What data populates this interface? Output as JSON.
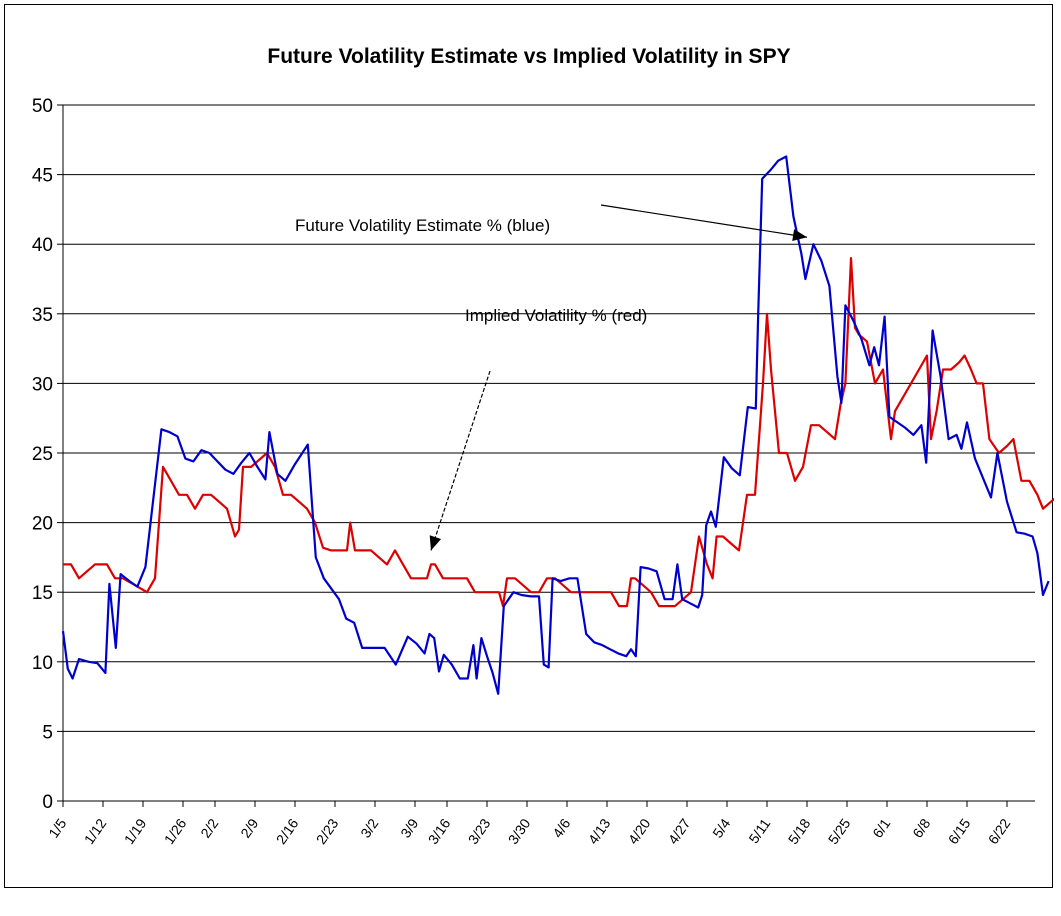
{
  "chart_data": {
    "type": "line",
    "title": "Future Volatility Estimate vs Implied Volatility in SPY",
    "xlabel": "",
    "ylabel": "",
    "ylim": [
      0,
      50
    ],
    "yticks": [
      0,
      5,
      10,
      15,
      20,
      25,
      30,
      35,
      40,
      45,
      50
    ],
    "grid": true,
    "x_index_range": [
      0,
      120
    ],
    "categories": [
      "1/5",
      "1/12",
      "1/19",
      "1/26",
      "2/2",
      "2/9",
      "2/16",
      "2/23",
      "3/2",
      "3/9",
      "3/16",
      "3/23",
      "3/30",
      "4/6",
      "4/13",
      "4/20",
      "4/27",
      "5/4",
      "5/11",
      "5/18",
      "5/25",
      "6/1",
      "6/8",
      "6/15",
      "6/22"
    ],
    "category_index": [
      0,
      5,
      10,
      15,
      19,
      24,
      29,
      34,
      39,
      44,
      48,
      53,
      58,
      63,
      68,
      73,
      78,
      83,
      88,
      93,
      98,
      103,
      108,
      113,
      118
    ],
    "annotations": [
      {
        "text": "Future Volatility Estimate % (blue)",
        "series": "Future Volatility Estimate %",
        "points_to": [
          93,
          40.5
        ]
      },
      {
        "text": "Implied Volatility % (red)",
        "series": "Implied Volatility %",
        "points_to": [
          46,
          18
        ]
      }
    ],
    "series": [
      {
        "name": "Future Volatility Estimate %",
        "color": "#0000cc",
        "points": [
          [
            0,
            12.2
          ],
          [
            0.6,
            9.5
          ],
          [
            1.2,
            8.8
          ],
          [
            2,
            10.2
          ],
          [
            3.2,
            10
          ],
          [
            4.3,
            9.9
          ],
          [
            5.3,
            9.2
          ],
          [
            5.8,
            15.6
          ],
          [
            6.6,
            11
          ],
          [
            7.2,
            16.3
          ],
          [
            8.3,
            15.8
          ],
          [
            9.3,
            15.4
          ],
          [
            10.3,
            16.8
          ],
          [
            12.3,
            26.7
          ],
          [
            13.3,
            26.5
          ],
          [
            14.3,
            26.2
          ],
          [
            15.3,
            24.6
          ],
          [
            16.3,
            24.4
          ],
          [
            17.3,
            25.2
          ],
          [
            18.3,
            25
          ],
          [
            19.3,
            24.4
          ],
          [
            20.3,
            23.8
          ],
          [
            21.3,
            23.5
          ],
          [
            22.3,
            24.3
          ],
          [
            23.3,
            25
          ],
          [
            24.3,
            24
          ],
          [
            25.3,
            23.1
          ],
          [
            25.8,
            26.5
          ],
          [
            26.8,
            23.5
          ],
          [
            27.8,
            23
          ],
          [
            29,
            24.2
          ],
          [
            30.6,
            25.6
          ],
          [
            31.6,
            17.5
          ],
          [
            32.6,
            16
          ],
          [
            34.5,
            14.5
          ],
          [
            35.4,
            13.1
          ],
          [
            36.4,
            12.8
          ],
          [
            37.4,
            11
          ],
          [
            38.4,
            11
          ],
          [
            40.2,
            11
          ],
          [
            41.6,
            9.8
          ],
          [
            43.1,
            11.8
          ],
          [
            44.2,
            11.3
          ],
          [
            45.2,
            10.6
          ],
          [
            45.8,
            12
          ],
          [
            46.4,
            11.7
          ],
          [
            47,
            9.3
          ],
          [
            47.6,
            10.5
          ],
          [
            48.6,
            9.8
          ],
          [
            49.6,
            8.8
          ],
          [
            50.6,
            8.8
          ],
          [
            51.3,
            11.2
          ],
          [
            51.7,
            8.8
          ],
          [
            52.3,
            11.7
          ],
          [
            53,
            10.4
          ],
          [
            53.7,
            9.2
          ],
          [
            54.4,
            7.7
          ],
          [
            55.1,
            14
          ],
          [
            56.3,
            15
          ],
          [
            57.3,
            14.8
          ],
          [
            58.5,
            14.7
          ],
          [
            59.5,
            14.7
          ],
          [
            60.1,
            9.8
          ],
          [
            60.7,
            9.6
          ],
          [
            61.2,
            16
          ],
          [
            62.2,
            15.8
          ],
          [
            63.3,
            16
          ],
          [
            64.3,
            16
          ],
          [
            65.4,
            12
          ],
          [
            66.4,
            11.4
          ],
          [
            67.4,
            11.2
          ],
          [
            68.4,
            10.9
          ],
          [
            69.4,
            10.6
          ],
          [
            70.4,
            10.4
          ],
          [
            71,
            10.9
          ],
          [
            71.6,
            10.4
          ],
          [
            72.2,
            16.8
          ],
          [
            73.2,
            16.7
          ],
          [
            74.2,
            16.5
          ],
          [
            75.2,
            14.5
          ],
          [
            76.2,
            14.5
          ],
          [
            76.8,
            17
          ],
          [
            77.4,
            14.5
          ],
          [
            78.4,
            14.2
          ],
          [
            79.4,
            13.9
          ],
          [
            79.9,
            14.8
          ],
          [
            80.4,
            19.8
          ],
          [
            81,
            20.8
          ],
          [
            81.6,
            19.7
          ],
          [
            82.6,
            24.7
          ],
          [
            83.6,
            23.9
          ],
          [
            84.6,
            23.4
          ],
          [
            85.6,
            28.3
          ],
          [
            86.6,
            28.2
          ],
          [
            86.9,
            35
          ],
          [
            87.4,
            44.7
          ],
          [
            88.4,
            45.3
          ],
          [
            89.4,
            46
          ],
          [
            90.4,
            46.3
          ],
          [
            91.3,
            42
          ],
          [
            92.3,
            39.3
          ],
          [
            92.8,
            37.5
          ],
          [
            93.8,
            40
          ],
          [
            94.8,
            38.8
          ],
          [
            95.8,
            37
          ],
          [
            96.8,
            30.5
          ],
          [
            97.3,
            28.6
          ],
          [
            97.8,
            35.6
          ],
          [
            98.8,
            34.5
          ],
          [
            99.8,
            33.2
          ],
          [
            100.8,
            31.3
          ],
          [
            101.4,
            32.6
          ],
          [
            102,
            31.3
          ],
          [
            102.7,
            34.8
          ],
          [
            103.3,
            27.6
          ],
          [
            104.3,
            27.2
          ],
          [
            105.3,
            26.8
          ],
          [
            106.3,
            26.3
          ],
          [
            107.3,
            27
          ],
          [
            107.9,
            24.3
          ],
          [
            108.7,
            33.8
          ],
          [
            109.7,
            30.5
          ],
          [
            110.7,
            26
          ],
          [
            111.7,
            26.3
          ],
          [
            112.3,
            25.3
          ],
          [
            113,
            27.2
          ],
          [
            114,
            24.6
          ],
          [
            115,
            23.2
          ],
          [
            116,
            21.8
          ],
          [
            116.8,
            25
          ],
          [
            118,
            21.5
          ],
          [
            119.2,
            19.3
          ],
          [
            120.2,
            19.2
          ],
          [
            121.2,
            19
          ],
          [
            121.8,
            17.8
          ],
          [
            122.5,
            14.8
          ],
          [
            123.2,
            15.8
          ]
        ]
      },
      {
        "name": "Implied Volatility %",
        "color": "#dd0000",
        "points": [
          [
            0,
            17
          ],
          [
            1,
            17
          ],
          [
            2,
            16
          ],
          [
            3,
            16.5
          ],
          [
            4,
            17
          ],
          [
            5.5,
            17
          ],
          [
            6.5,
            16
          ],
          [
            7.5,
            16
          ],
          [
            9,
            15.5
          ],
          [
            10.5,
            15
          ],
          [
            11.5,
            16
          ],
          [
            12.5,
            24
          ],
          [
            13.5,
            23
          ],
          [
            14.5,
            22
          ],
          [
            15.5,
            22
          ],
          [
            16.5,
            21
          ],
          [
            17.5,
            22
          ],
          [
            18.5,
            22
          ],
          [
            19.5,
            21.5
          ],
          [
            20.5,
            21
          ],
          [
            21.5,
            19
          ],
          [
            22,
            19.5
          ],
          [
            22.5,
            24
          ],
          [
            23.5,
            24
          ],
          [
            24.5,
            24.5
          ],
          [
            25.5,
            25
          ],
          [
            26.5,
            24
          ],
          [
            27.5,
            22
          ],
          [
            28.5,
            22
          ],
          [
            29.5,
            21.5
          ],
          [
            30.5,
            21
          ],
          [
            31.5,
            20
          ],
          [
            32.5,
            18.2
          ],
          [
            33.5,
            18
          ],
          [
            34.5,
            18
          ],
          [
            35.5,
            18
          ],
          [
            35.9,
            20
          ],
          [
            36.5,
            18
          ],
          [
            37.5,
            18
          ],
          [
            38.5,
            18
          ],
          [
            39.5,
            17.5
          ],
          [
            40.5,
            17
          ],
          [
            41.5,
            18
          ],
          [
            42.5,
            17
          ],
          [
            43.5,
            16
          ],
          [
            44.5,
            16
          ],
          [
            45.5,
            16
          ],
          [
            46,
            17
          ],
          [
            46.5,
            17
          ],
          [
            47.5,
            16
          ],
          [
            48.5,
            16
          ],
          [
            49.5,
            16
          ],
          [
            50.5,
            16
          ],
          [
            51.5,
            15
          ],
          [
            52.5,
            15
          ],
          [
            53.5,
            15
          ],
          [
            54.5,
            15
          ],
          [
            55,
            14
          ],
          [
            55.5,
            16
          ],
          [
            56.5,
            16
          ],
          [
            57.5,
            15.5
          ],
          [
            58.5,
            15
          ],
          [
            59.5,
            15
          ],
          [
            60.5,
            16
          ],
          [
            61.5,
            16
          ],
          [
            62.5,
            15.5
          ],
          [
            63.5,
            15
          ],
          [
            64.5,
            15
          ],
          [
            65.5,
            15
          ],
          [
            66.5,
            15
          ],
          [
            67.5,
            15
          ],
          [
            68.5,
            15
          ],
          [
            69.5,
            14
          ],
          [
            70.5,
            14
          ],
          [
            71,
            16
          ],
          [
            71.5,
            16
          ],
          [
            72.5,
            15.5
          ],
          [
            73.5,
            15
          ],
          [
            74.5,
            14
          ],
          [
            75.5,
            14
          ],
          [
            76.5,
            14
          ],
          [
            77.5,
            14.5
          ],
          [
            78.5,
            15
          ],
          [
            79.5,
            19
          ],
          [
            80.5,
            17
          ],
          [
            81.2,
            16
          ],
          [
            81.7,
            19
          ],
          [
            82.5,
            19
          ],
          [
            83.5,
            18.5
          ],
          [
            84.5,
            18
          ],
          [
            85.5,
            22
          ],
          [
            86.5,
            22
          ],
          [
            87.5,
            30
          ],
          [
            88,
            35
          ],
          [
            88.5,
            31
          ],
          [
            89.5,
            25
          ],
          [
            90.5,
            25
          ],
          [
            91.5,
            23
          ],
          [
            92.5,
            24
          ],
          [
            93.5,
            27
          ],
          [
            94.5,
            27
          ],
          [
            95.5,
            26.5
          ],
          [
            96.5,
            26
          ],
          [
            97.2,
            28.5
          ],
          [
            97.8,
            30
          ],
          [
            98.5,
            39
          ],
          [
            99,
            34
          ],
          [
            99.5,
            33.5
          ],
          [
            100.5,
            33
          ],
          [
            101.5,
            30
          ],
          [
            102.5,
            31
          ],
          [
            103.5,
            26
          ],
          [
            104,
            28
          ],
          [
            105,
            29
          ],
          [
            106,
            30
          ],
          [
            107,
            31
          ],
          [
            108,
            32
          ],
          [
            108.5,
            26
          ],
          [
            109.2,
            28
          ],
          [
            110,
            31
          ],
          [
            111,
            31
          ],
          [
            112,
            31.5
          ],
          [
            112.7,
            32
          ],
          [
            113.5,
            31
          ],
          [
            114.2,
            30
          ],
          [
            115,
            30
          ],
          [
            115.8,
            26
          ],
          [
            117,
            25
          ],
          [
            118,
            25.5
          ],
          [
            118.8,
            26
          ],
          [
            119.8,
            23
          ],
          [
            120.8,
            23
          ],
          [
            121.8,
            22
          ],
          [
            122.5,
            21
          ],
          [
            123.5,
            21.5
          ],
          [
            124.5,
            22
          ],
          [
            125.5,
            24
          ],
          [
            126.2,
            24
          ],
          [
            127,
            27
          ]
        ]
      }
    ]
  }
}
